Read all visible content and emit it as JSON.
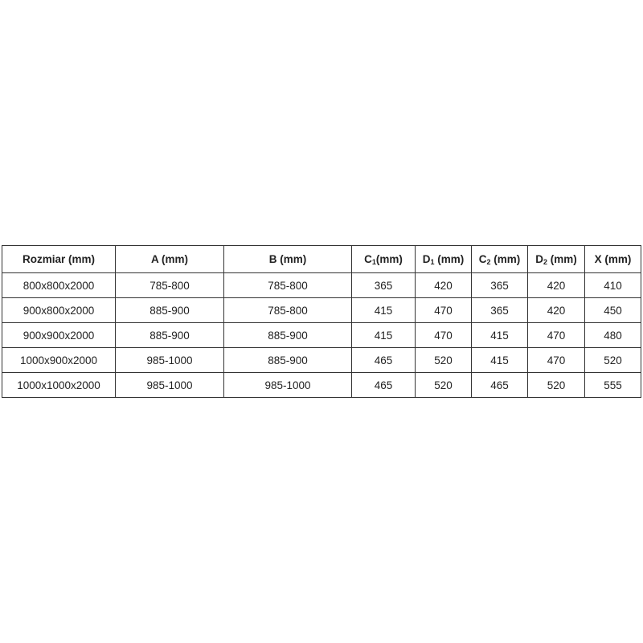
{
  "table": {
    "headers": [
      {
        "text": "Rozmiar (mm)"
      },
      {
        "text": "A (mm)"
      },
      {
        "text": "B (mm)"
      },
      {
        "pre": "C",
        "sub": "1",
        "post": "(mm)"
      },
      {
        "pre": "D",
        "sub": "1",
        "post": " (mm)"
      },
      {
        "pre": "C",
        "sub": "2",
        "post": " (mm)"
      },
      {
        "pre": "D",
        "sub": "2",
        "post": " (mm)"
      },
      {
        "text": "X (mm)"
      }
    ],
    "rows": [
      [
        "800x800x2000",
        "785-800",
        "785-800",
        "365",
        "420",
        "365",
        "420",
        "410"
      ],
      [
        "900x800x2000",
        "885-900",
        "785-800",
        "415",
        "470",
        "365",
        "420",
        "450"
      ],
      [
        "900x900x2000",
        "885-900",
        "885-900",
        "415",
        "470",
        "415",
        "470",
        "480"
      ],
      [
        "1000x900x2000",
        "985-1000",
        "885-900",
        "465",
        "520",
        "415",
        "470",
        "520"
      ],
      [
        "1000x1000x2000",
        "985-1000",
        "985-1000",
        "465",
        "520",
        "465",
        "520",
        "555"
      ]
    ]
  }
}
